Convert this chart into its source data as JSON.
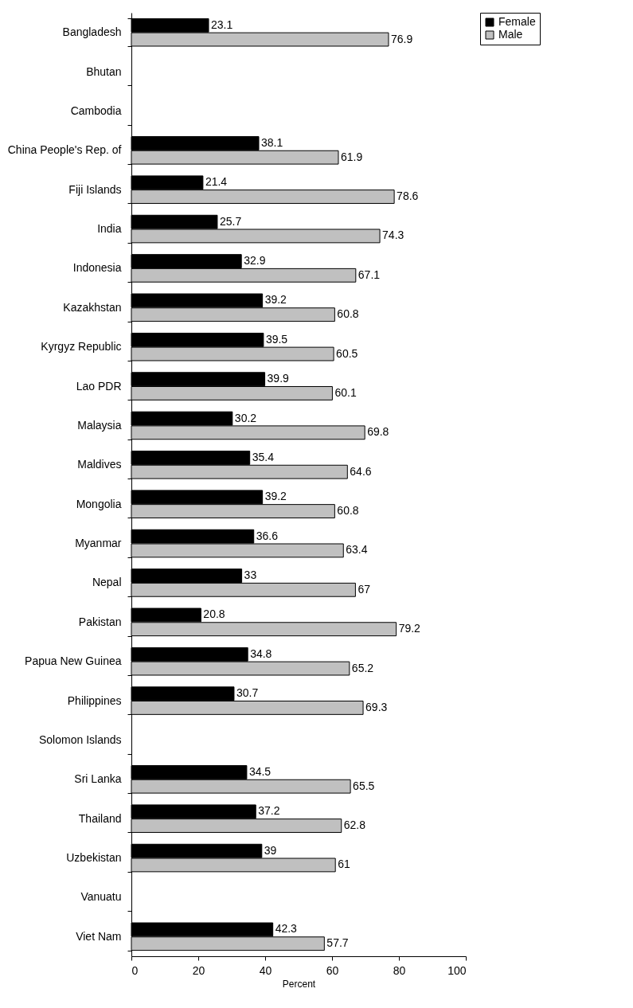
{
  "chart_data": {
    "type": "bar",
    "orientation": "horizontal",
    "xlabel": "Percent",
    "categories": [
      "Bangladesh",
      "Bhutan",
      "Cambodia",
      "China People's Rep. of",
      "Fiji Islands",
      "India",
      "Indonesia",
      "Kazakhstan",
      "Kyrgyz Republic",
      "Lao PDR",
      "Malaysia",
      "Maldives",
      "Mongolia",
      "Myanmar",
      "Nepal",
      "Pakistan",
      "Papua New Guinea",
      "Philippines",
      "Solomon Islands",
      "Sri Lanka",
      "Thailand",
      "Uzbekistan",
      "Vanuatu",
      "Viet Nam"
    ],
    "series": [
      {
        "name": "Female",
        "color": "#000000",
        "values": [
          23.1,
          null,
          null,
          38.1,
          21.4,
          25.7,
          32.9,
          39.2,
          39.5,
          39.9,
          30.2,
          35.4,
          39.2,
          36.6,
          33,
          20.8,
          34.8,
          30.7,
          null,
          34.5,
          37.2,
          39,
          null,
          42.3
        ]
      },
      {
        "name": "Male",
        "color": "#c0c0c0",
        "values": [
          76.9,
          null,
          null,
          61.9,
          78.6,
          74.3,
          67.1,
          60.8,
          60.5,
          60.1,
          69.8,
          64.6,
          60.8,
          63.4,
          67,
          79.2,
          65.2,
          69.3,
          null,
          65.5,
          62.8,
          61,
          null,
          57.7
        ]
      }
    ],
    "xlim": [
      0,
      100
    ],
    "xticks": [
      0,
      20,
      40,
      60,
      80,
      100
    ],
    "data_labels": true,
    "legend": "right"
  }
}
